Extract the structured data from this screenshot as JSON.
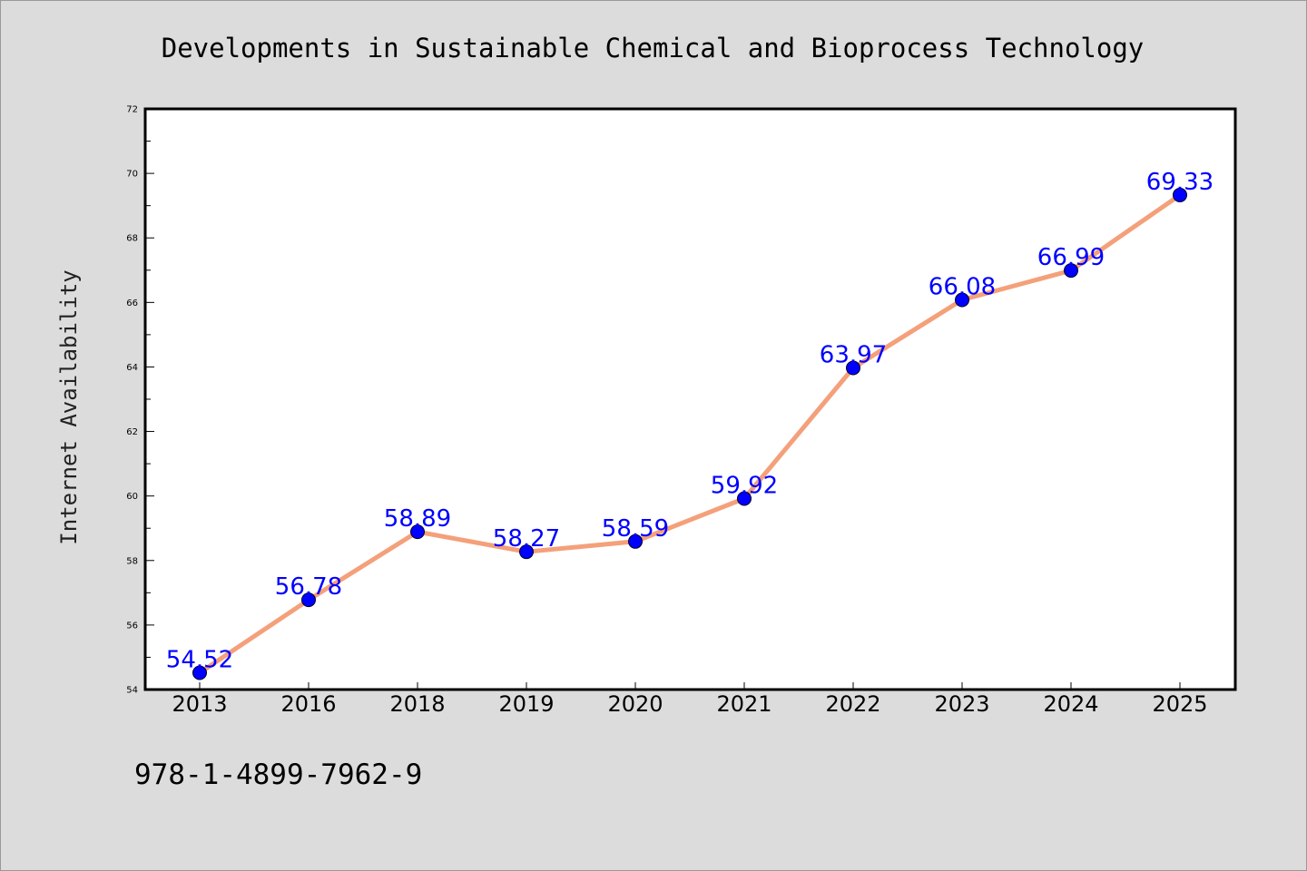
{
  "chart_data": {
    "type": "line",
    "title": "Developments in Sustainable Chemical and Bioprocess Technology",
    "xlabel": "",
    "ylabel": "Internet Availability",
    "categories": [
      "2013",
      "2016",
      "2018",
      "2019",
      "2020",
      "2021",
      "2022",
      "2023",
      "2024",
      "2025"
    ],
    "series": [
      {
        "values": [
          54.52,
          56.78,
          58.89,
          58.27,
          58.59,
          59.92,
          63.97,
          66.08,
          66.99,
          69.33
        ],
        "data_labels": [
          "54.52",
          "56.78",
          "58.89",
          "58.27",
          "58.59",
          "59.92",
          "63.97",
          "66.08",
          "66.99",
          "69.33"
        ]
      }
    ],
    "ylim": [
      54,
      72
    ],
    "yticks": [
      54,
      56,
      58,
      60,
      62,
      64,
      66,
      68,
      70,
      72
    ],
    "ytick_labels": [
      "54",
      "56",
      "58",
      "60",
      "62",
      "64",
      "66",
      "68",
      "70",
      "72"
    ],
    "grid": false,
    "legend": "none",
    "colors": {
      "line": "#f4a07a",
      "marker": "#0000ff",
      "label": "#0000ff",
      "background": "#dcdcdc"
    }
  },
  "footer": {
    "isbn": "978-1-4899-7962-9"
  }
}
